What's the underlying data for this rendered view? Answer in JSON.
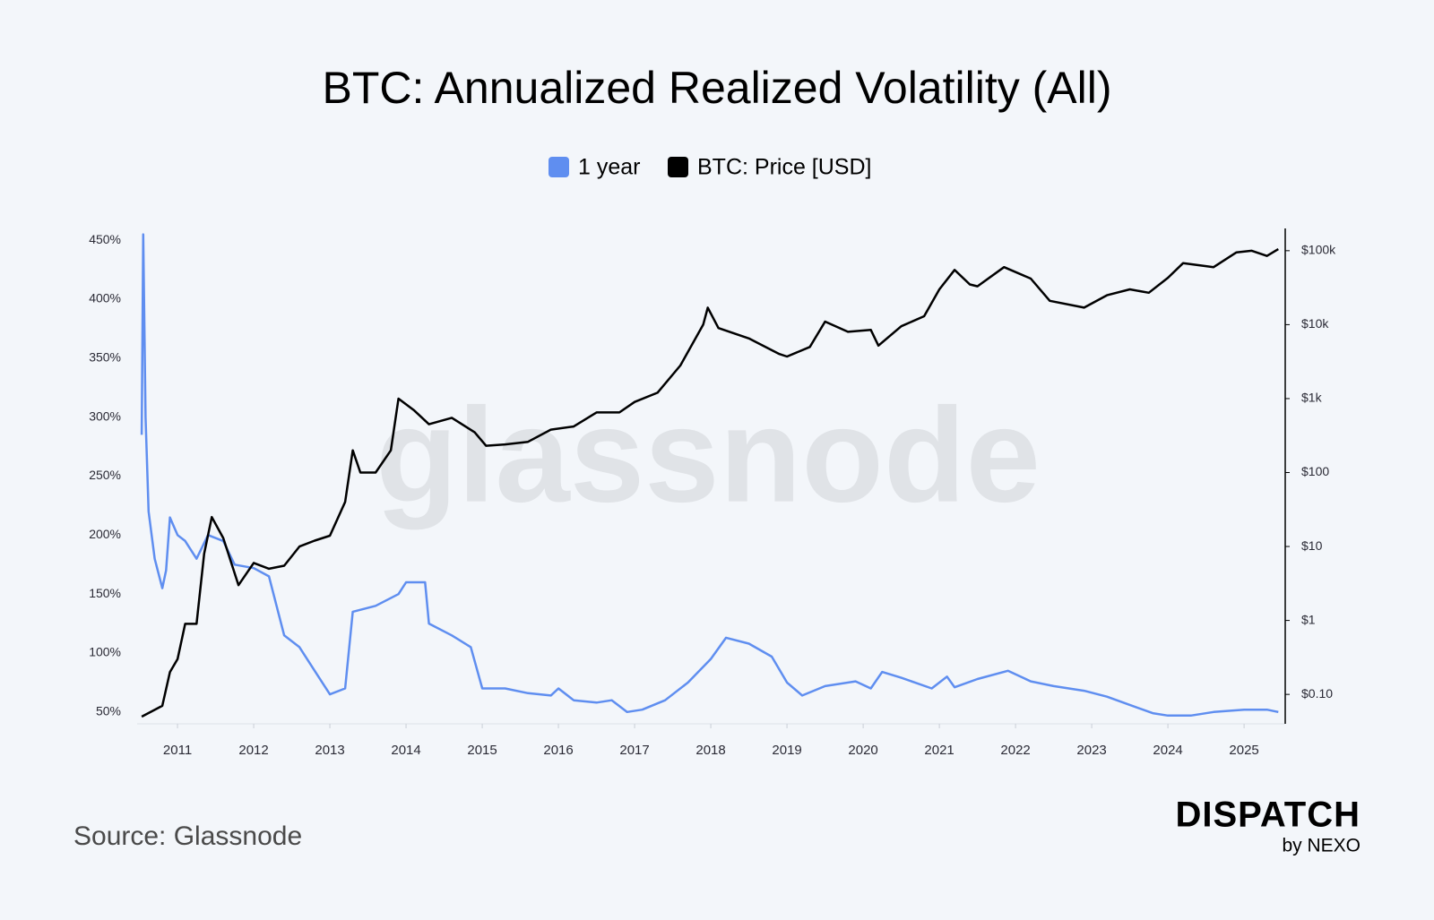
{
  "chart_data": {
    "type": "line",
    "title": "BTC: Annualized Realized Volatility (All)",
    "watermark": "glassnode",
    "source": "Source: Glassnode",
    "brand": "DISPATCH",
    "brand_sub": "by NEXO",
    "xlim": [
      2010.47,
      2025.54
    ],
    "xticks": [
      2011,
      2012,
      2013,
      2014,
      2015,
      2016,
      2017,
      2018,
      2019,
      2020,
      2021,
      2022,
      2023,
      2024,
      2025
    ],
    "ylim": [
      40,
      460
    ],
    "yticks": [
      {
        "value": 50,
        "label": "50%"
      },
      {
        "value": 100,
        "label": "100%"
      },
      {
        "value": 150,
        "label": "150%"
      },
      {
        "value": 200,
        "label": "200%"
      },
      {
        "value": 250,
        "label": "250%"
      },
      {
        "value": 300,
        "label": "300%"
      },
      {
        "value": 350,
        "label": "350%"
      },
      {
        "value": 400,
        "label": "400%"
      },
      {
        "value": 450,
        "label": "450%"
      }
    ],
    "y2lim": [
      0.04,
      200000
    ],
    "y2scale": "log",
    "y2ticks": [
      {
        "value": 0.1,
        "label": "$0.10"
      },
      {
        "value": 1,
        "label": "$1"
      },
      {
        "value": 10,
        "label": "$10"
      },
      {
        "value": 100,
        "label": "$100"
      },
      {
        "value": 1000,
        "label": "$1k"
      },
      {
        "value": 10000,
        "label": "$10k"
      },
      {
        "value": 100000,
        "label": "$100k"
      }
    ],
    "series": [
      {
        "name": "1 year",
        "color": "#5f8ef0",
        "axis": "y",
        "x": [
          2010.53,
          2010.55,
          2010.58,
          2010.62,
          2010.7,
          2010.8,
          2010.85,
          2010.9,
          2011.0,
          2011.1,
          2011.25,
          2011.4,
          2011.6,
          2011.75,
          2012.0,
          2012.2,
          2012.4,
          2012.6,
          2012.8,
          2013.0,
          2013.2,
          2013.3,
          2013.6,
          2013.9,
          2014.0,
          2014.25,
          2014.3,
          2014.6,
          2014.85,
          2015.0,
          2015.3,
          2015.6,
          2015.9,
          2016.0,
          2016.2,
          2016.5,
          2016.7,
          2016.9,
          2017.1,
          2017.4,
          2017.7,
          2018.0,
          2018.2,
          2018.5,
          2018.8,
          2019.0,
          2019.2,
          2019.5,
          2019.9,
          2020.1,
          2020.25,
          2020.5,
          2020.9,
          2021.1,
          2021.2,
          2021.5,
          2021.9,
          2022.2,
          2022.5,
          2022.9,
          2023.2,
          2023.5,
          2023.8,
          2024.0,
          2024.3,
          2024.6,
          2025.0,
          2025.3,
          2025.45
        ],
        "values": [
          285,
          455,
          300,
          220,
          180,
          155,
          170,
          215,
          200,
          195,
          180,
          200,
          195,
          175,
          172,
          165,
          115,
          105,
          85,
          65,
          70,
          135,
          140,
          150,
          160,
          160,
          125,
          115,
          105,
          70,
          70,
          66,
          64,
          70,
          60,
          58,
          60,
          50,
          52,
          60,
          75,
          95,
          113,
          108,
          97,
          75,
          64,
          72,
          76,
          70,
          84,
          79,
          70,
          80,
          71,
          78,
          85,
          76,
          72,
          68,
          63,
          56,
          49,
          47,
          47,
          50,
          52,
          52,
          50
        ]
      },
      {
        "name": "BTC: Price [USD]",
        "color": "#000000",
        "axis": "y2",
        "x": [
          2010.53,
          2010.8,
          2010.9,
          2011.0,
          2011.1,
          2011.25,
          2011.35,
          2011.45,
          2011.6,
          2011.8,
          2012.0,
          2012.2,
          2012.4,
          2012.6,
          2012.8,
          2013.0,
          2013.2,
          2013.3,
          2013.4,
          2013.6,
          2013.8,
          2013.9,
          2014.1,
          2014.3,
          2014.6,
          2014.9,
          2015.05,
          2015.3,
          2015.6,
          2015.9,
          2016.2,
          2016.5,
          2016.8,
          2017.0,
          2017.3,
          2017.6,
          2017.9,
          2017.96,
          2018.1,
          2018.5,
          2018.9,
          2019.0,
          2019.3,
          2019.5,
          2019.8,
          2020.1,
          2020.2,
          2020.5,
          2020.8,
          2021.0,
          2021.2,
          2021.4,
          2021.5,
          2021.85,
          2022.2,
          2022.45,
          2022.9,
          2023.2,
          2023.5,
          2023.75,
          2024.0,
          2024.2,
          2024.6,
          2024.9,
          2025.1,
          2025.3,
          2025.45
        ],
        "values": [
          0.05,
          0.07,
          0.2,
          0.3,
          0.9,
          0.9,
          8,
          25,
          13,
          3,
          6,
          5,
          5.5,
          10,
          12,
          14,
          40,
          200,
          100,
          100,
          200,
          1000,
          700,
          450,
          550,
          350,
          230,
          240,
          260,
          380,
          420,
          650,
          650,
          900,
          1200,
          2800,
          10000,
          17000,
          9000,
          6500,
          4000,
          3700,
          5000,
          11000,
          8000,
          8500,
          5200,
          9500,
          13000,
          30000,
          55000,
          35000,
          33000,
          60000,
          42000,
          21000,
          17000,
          25000,
          30000,
          27000,
          43000,
          68000,
          60000,
          95000,
          100000,
          85000,
          105000
        ]
      }
    ]
  }
}
